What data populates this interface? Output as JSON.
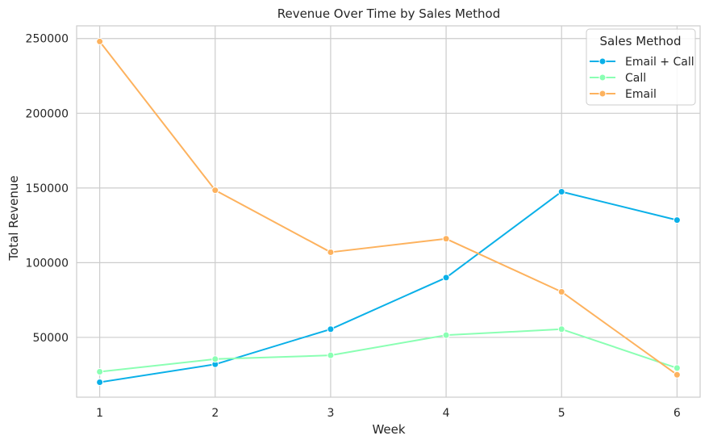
{
  "chart_data": {
    "type": "line",
    "title": "Revenue Over Time by Sales Method",
    "xlabel": "Week",
    "ylabel": "Total Revenue",
    "x": [
      1,
      2,
      3,
      4,
      5,
      6
    ],
    "xticks": [
      "1",
      "2",
      "3",
      "4",
      "5",
      "6"
    ],
    "yticks": [
      "50000",
      "100000",
      "150000",
      "200000",
      "250000"
    ],
    "ytick_values": [
      50000,
      100000,
      150000,
      200000,
      250000
    ],
    "xlim": [
      0.8,
      6.2
    ],
    "ylim": [
      10000,
      258500
    ],
    "grid": true,
    "legend": {
      "title": "Sales Method",
      "placement": "top-right"
    },
    "series": [
      {
        "name": "Email + Call",
        "color": "#0ab0e8",
        "values": [
          20000,
          32000,
          55500,
          90000,
          147500,
          128500
        ]
      },
      {
        "name": "Call",
        "color": "#8affb3",
        "values": [
          27000,
          35500,
          38000,
          51500,
          55500,
          29500
        ]
      },
      {
        "name": "Email",
        "color": "#fdb25e",
        "values": [
          248000,
          148500,
          107000,
          116000,
          80500,
          25000
        ]
      }
    ]
  }
}
